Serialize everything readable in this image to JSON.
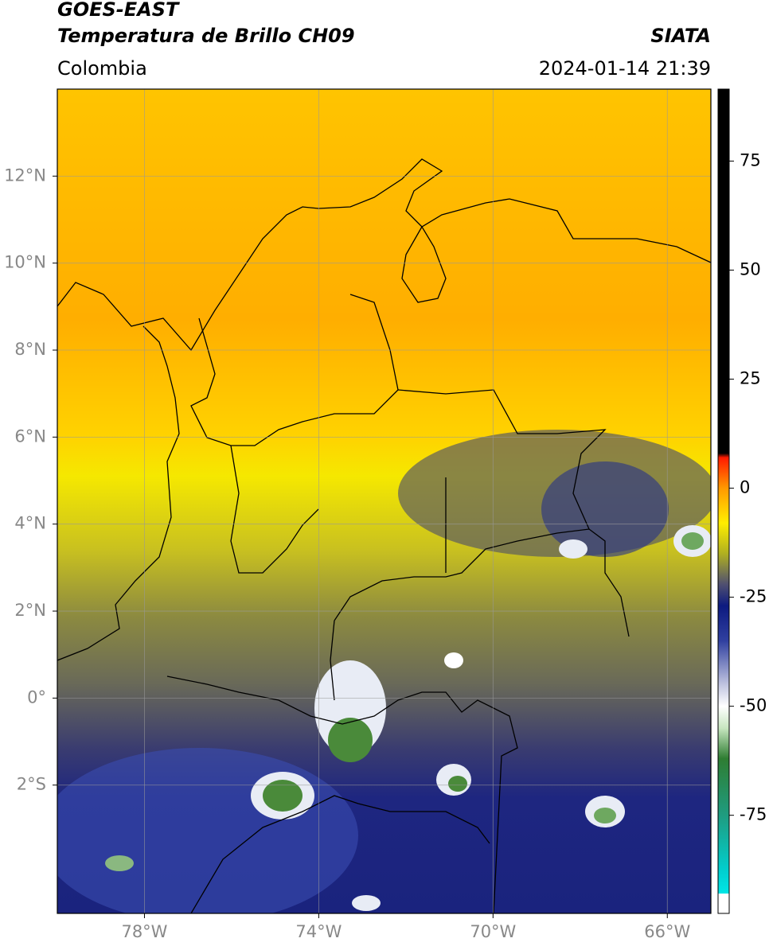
{
  "header": {
    "title": "GOES-EAST",
    "subtitle": "Temperatura de Brillo CH09",
    "source": "SIATA",
    "region": "Colombia",
    "datetime": "2024-01-14 21:39"
  },
  "map": {
    "xlim": [
      -80,
      -65
    ],
    "ylim": [
      -4.95,
      14
    ],
    "xticks": [
      {
        "value": -78,
        "label": "78°W"
      },
      {
        "value": -74,
        "label": "74°W"
      },
      {
        "value": -70,
        "label": "70°W"
      },
      {
        "value": -66,
        "label": "66°W"
      }
    ],
    "yticks": [
      {
        "value": 12,
        "label": "12°N"
      },
      {
        "value": 10,
        "label": "10°N"
      },
      {
        "value": 8,
        "label": "8°N"
      },
      {
        "value": 6,
        "label": "6°N"
      },
      {
        "value": 4,
        "label": "4°N"
      },
      {
        "value": 2,
        "label": "2°N"
      },
      {
        "value": 0,
        "label": "0°"
      },
      {
        "value": -2,
        "label": "2°S"
      }
    ],
    "grid": true
  },
  "colorbar": {
    "lim": [
      -97.5,
      91.5
    ],
    "ticks": [
      75,
      50,
      25,
      0,
      -25,
      -50,
      -75
    ],
    "colormap": [
      {
        "value": -97.5,
        "color": "#ffffff"
      },
      {
        "value": -93,
        "color": "#ffffff"
      },
      {
        "value": -92.9,
        "color": "#00e5e5"
      },
      {
        "value": -88,
        "color": "#00d0d0"
      },
      {
        "value": -75,
        "color": "#1f9c80"
      },
      {
        "value": -62,
        "color": "#2e7d32"
      },
      {
        "value": -55,
        "color": "#c8e6c0"
      },
      {
        "value": -50,
        "color": "#ffffff"
      },
      {
        "value": -45,
        "color": "#c0c4e0"
      },
      {
        "value": -35,
        "color": "#3040a0"
      },
      {
        "value": -27,
        "color": "#0d1a80"
      },
      {
        "value": -22,
        "color": "#505070"
      },
      {
        "value": -15,
        "color": "#b0b020"
      },
      {
        "value": -8,
        "color": "#ffee00"
      },
      {
        "value": 0,
        "color": "#ff9900"
      },
      {
        "value": 7,
        "color": "#ff1a00"
      },
      {
        "value": 8,
        "color": "#000000"
      },
      {
        "value": 91.5,
        "color": "#000000"
      }
    ]
  }
}
